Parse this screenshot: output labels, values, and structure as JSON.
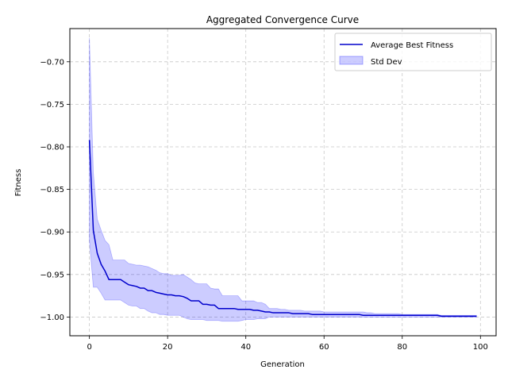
{
  "chart_data": {
    "type": "line",
    "title": "Aggregated Convergence Curve",
    "xlabel": "Generation",
    "ylabel": "Fitness",
    "xlim": [
      -5,
      104
    ],
    "ylim": [
      -1.022,
      -0.661
    ],
    "xticks": [
      0,
      20,
      40,
      60,
      80,
      100
    ],
    "yticks": [
      -1.0,
      -0.95,
      -0.9,
      -0.85,
      -0.8,
      -0.75,
      -0.7
    ],
    "ytick_labels": [
      "−1.00",
      "−0.95",
      "−0.90",
      "−0.85",
      "−0.80",
      "−0.75",
      "−0.70"
    ],
    "grid": true,
    "legend_position": "top-right",
    "series": [
      {
        "name": "Average Best Fitness",
        "color": "#0000cc",
        "x": [
          0,
          1,
          2,
          3,
          4,
          5,
          6,
          7,
          8,
          9,
          10,
          11,
          12,
          13,
          14,
          15,
          16,
          17,
          18,
          19,
          20,
          21,
          22,
          23,
          24,
          25,
          26,
          27,
          28,
          29,
          30,
          31,
          32,
          33,
          34,
          35,
          36,
          37,
          38,
          39,
          40,
          41,
          42,
          43,
          44,
          45,
          46,
          47,
          48,
          49,
          50,
          51,
          52,
          53,
          54,
          55,
          56,
          57,
          58,
          59,
          60,
          61,
          62,
          63,
          64,
          65,
          66,
          67,
          68,
          69,
          70,
          71,
          72,
          73,
          74,
          75,
          76,
          77,
          78,
          79,
          80,
          81,
          82,
          83,
          84,
          85,
          86,
          87,
          88,
          89,
          90,
          91,
          92,
          93,
          94,
          95,
          96,
          97,
          98,
          99
        ],
        "values": [
          -0.792,
          -0.898,
          -0.925,
          -0.938,
          -0.946,
          -0.956,
          -0.956,
          -0.956,
          -0.956,
          -0.959,
          -0.962,
          -0.963,
          -0.964,
          -0.966,
          -0.966,
          -0.969,
          -0.969,
          -0.971,
          -0.972,
          -0.973,
          -0.974,
          -0.974,
          -0.975,
          -0.975,
          -0.976,
          -0.978,
          -0.981,
          -0.981,
          -0.981,
          -0.985,
          -0.985,
          -0.986,
          -0.986,
          -0.99,
          -0.99,
          -0.99,
          -0.99,
          -0.99,
          -0.991,
          -0.991,
          -0.991,
          -0.991,
          -0.992,
          -0.992,
          -0.993,
          -0.994,
          -0.994,
          -0.995,
          -0.995,
          -0.995,
          -0.995,
          -0.995,
          -0.996,
          -0.996,
          -0.996,
          -0.996,
          -0.996,
          -0.997,
          -0.997,
          -0.997,
          -0.997,
          -0.997,
          -0.997,
          -0.997,
          -0.997,
          -0.997,
          -0.997,
          -0.997,
          -0.997,
          -0.997,
          -0.998,
          -0.998,
          -0.998,
          -0.998,
          -0.998,
          -0.998,
          -0.998,
          -0.998,
          -0.998,
          -0.998,
          -0.998,
          -0.998,
          -0.998,
          -0.998,
          -0.998,
          -0.998,
          -0.998,
          -0.998,
          -0.998,
          -0.998,
          -0.999,
          -0.999,
          -0.999,
          -0.999,
          -0.999,
          -0.999,
          -0.999,
          -0.999,
          -0.999,
          -0.999
        ]
      },
      {
        "name": "Std Dev",
        "type": "band",
        "color": "#0000ff",
        "upper": [
          -0.672,
          -0.83,
          -0.885,
          -0.898,
          -0.91,
          -0.915,
          -0.933,
          -0.933,
          -0.933,
          -0.933,
          -0.937,
          -0.938,
          -0.939,
          -0.939,
          -0.94,
          -0.941,
          -0.943,
          -0.945,
          -0.948,
          -0.949,
          -0.949,
          -0.951,
          -0.951,
          -0.951,
          -0.95,
          -0.953,
          -0.956,
          -0.96,
          -0.961,
          -0.961,
          -0.961,
          -0.966,
          -0.967,
          -0.967,
          -0.975,
          -0.975,
          -0.975,
          -0.975,
          -0.975,
          -0.981,
          -0.981,
          -0.981,
          -0.981,
          -0.983,
          -0.983,
          -0.985,
          -0.99,
          -0.99,
          -0.99,
          -0.991,
          -0.991,
          -0.992,
          -0.992,
          -0.992,
          -0.992,
          -0.993,
          -0.993,
          -0.993,
          -0.993,
          -0.993,
          -0.994,
          -0.994,
          -0.994,
          -0.994,
          -0.994,
          -0.994,
          -0.994,
          -0.994,
          -0.994,
          -0.994,
          -0.994,
          -0.995,
          -0.995,
          -0.996,
          -0.996,
          -0.996,
          -0.996,
          -0.996,
          -0.996,
          -0.996,
          -0.997,
          -0.997,
          -0.997,
          -0.997,
          -0.997,
          -0.997,
          -0.997,
          -0.997,
          -0.997,
          -0.997,
          -0.998,
          -0.998,
          -0.998,
          -0.998,
          -0.998,
          -0.998,
          -0.998,
          -0.998,
          -0.998,
          -0.998
        ],
        "lower": [
          -0.91,
          -0.965,
          -0.965,
          -0.972,
          -0.98,
          -0.98,
          -0.98,
          -0.98,
          -0.98,
          -0.983,
          -0.986,
          -0.987,
          -0.987,
          -0.99,
          -0.99,
          -0.993,
          -0.995,
          -0.995,
          -0.997,
          -0.997,
          -0.998,
          -0.998,
          -0.998,
          -0.998,
          -1.0,
          -1.002,
          -1.003,
          -1.003,
          -1.003,
          -1.003,
          -1.004,
          -1.004,
          -1.004,
          -1.004,
          -1.005,
          -1.005,
          -1.005,
          -1.005,
          -1.005,
          -1.004,
          -1.003,
          -1.003,
          -1.003,
          -1.002,
          -1.002,
          -1.002,
          -1.0,
          -1.0,
          -1.0,
          -1.0,
          -1.0,
          -1.0,
          -1.0,
          -1.0,
          -1.0,
          -1.0,
          -1.0,
          -1.0,
          -1.0,
          -1.0,
          -1.0,
          -1.0,
          -1.0,
          -1.0,
          -1.0,
          -1.0,
          -1.0,
          -1.0,
          -1.0,
          -1.0,
          -1.0,
          -1.0,
          -1.0,
          -1.0,
          -1.0,
          -1.0,
          -1.0,
          -1.0,
          -1.0,
          -1.0,
          -1.0,
          -1.0,
          -1.0,
          -1.0,
          -1.0,
          -1.0,
          -1.0,
          -1.0,
          -1.0,
          -1.0,
          -1.0,
          -1.0,
          -1.0,
          -1.0,
          -1.0,
          -1.0,
          -1.0,
          -1.0,
          -1.0,
          -1.0
        ]
      }
    ]
  }
}
